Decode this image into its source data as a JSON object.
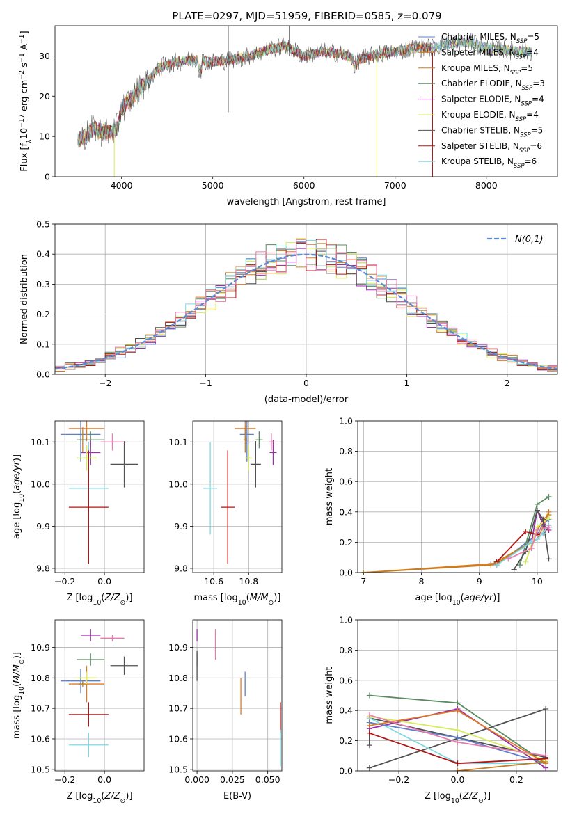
{
  "figure": {
    "title": "PLATE=0297, MJD=51959, FIBERID=0585, z=0.079"
  },
  "colors": {
    "blue": "#5f80c8",
    "orange": "#e07a22",
    "darkorange": "#c77d1e",
    "green": "#5a8a62",
    "purple": "#9a2fa8",
    "yellow": "#d6ec5a",
    "darkgray": "#505050",
    "darkred": "#b01414",
    "cyan": "#7dd8e0",
    "pink": "#e77ab0",
    "grid": "#b0b0b0"
  },
  "chart_data": [
    {
      "id": "spectrum",
      "type": "line",
      "xlabel": "wavelength [Angstrom, rest frame]",
      "ylabel": "Flux [f_λ10^-17 erg cm^-2 s^-1 A^-1]",
      "xlim": [
        3270,
        8780
      ],
      "ylim": [
        0,
        37.5
      ],
      "xticks": [
        4000,
        5000,
        6000,
        7000,
        8000
      ],
      "yticks": [
        0,
        10,
        20,
        30
      ],
      "grid": false,
      "legend_position": "lower-right",
      "continuum": {
        "x": [
          3520,
          3600,
          3700,
          3800,
          3900,
          3950,
          4000,
          4100,
          4200,
          4300,
          4400,
          4600,
          4800,
          5000,
          5200,
          5400,
          5600,
          5800,
          6000,
          6200,
          6400,
          6600,
          6800,
          7000,
          7200,
          7400,
          7600,
          7800,
          8000,
          8200,
          8500
        ],
        "y": [
          9,
          10,
          12,
          11,
          11,
          12,
          17,
          19,
          22,
          24,
          27,
          28.5,
          29,
          28.5,
          29,
          30,
          31.5,
          32.5,
          30,
          31,
          30.5,
          29,
          30.5,
          31,
          32,
          32,
          33,
          33.5,
          32,
          31.5,
          31
        ]
      },
      "series": [
        {
          "name": "Chabrier MILES, N_SSP=5",
          "color": "blue",
          "label_main": "Chabrier MILES, N",
          "label_sub": "SSP",
          "label_end": "=5"
        },
        {
          "name": "Salpeter MILES, N_SSP=4",
          "color": "orange",
          "label_main": "Salpeter MILES, N",
          "label_sub": "SSP",
          "label_end": "=4"
        },
        {
          "name": "Kroupa MILES, N_SSP=5",
          "color": "darkorange",
          "label_main": "Kroupa MILES, N",
          "label_sub": "SSP",
          "label_end": "=5"
        },
        {
          "name": "Chabrier ELODIE, N_SSP=3",
          "color": "green",
          "label_main": "Chabrier ELODIE, N",
          "label_sub": "SSP",
          "label_end": "=3"
        },
        {
          "name": "Salpeter ELODIE, N_SSP=4",
          "color": "purple",
          "label_main": "Salpeter ELODIE, N",
          "label_sub": "SSP",
          "label_end": "=4"
        },
        {
          "name": "Kroupa ELODIE, N_SSP=4",
          "color": "yellow",
          "label_main": "Kroupa ELODIE, N",
          "label_sub": "SSP",
          "label_end": "=4"
        },
        {
          "name": "Chabrier STELIB, N_SSP=5",
          "color": "darkgray",
          "label_main": "Chabrier STELIB, N",
          "label_sub": "SSP",
          "label_end": "=5"
        },
        {
          "name": "Salpeter STELIB, N_SSP=6",
          "color": "darkred",
          "label_main": "Salpeter STELIB, N",
          "label_sub": "SSP",
          "label_end": "=6"
        },
        {
          "name": "Kroupa STELIB, N_SSP=6",
          "color": "cyan",
          "label_main": "Kroupa STELIB, N",
          "label_sub": "SSP",
          "label_end": "=6"
        }
      ],
      "spikes": [
        {
          "x": 5170,
          "y0": 16,
          "y1": 37.5,
          "color": "darkgray"
        },
        {
          "x": 5840,
          "y0": 30,
          "y1": 37.5,
          "color": "darkgray"
        },
        {
          "x": 3920,
          "y0": 0,
          "y1": 12,
          "color": "yellow"
        },
        {
          "x": 6800,
          "y0": 0,
          "y1": 30,
          "color": "yellow"
        },
        {
          "x": 7410,
          "y0": 0,
          "y1": 31,
          "color": "darkred"
        }
      ]
    },
    {
      "id": "residual-histogram",
      "type": "histogram",
      "xlabel": "(data-model)/error",
      "ylabel": "Normed distribution",
      "xlim": [
        -2.5,
        2.5
      ],
      "ylim": [
        0,
        0.5
      ],
      "xticks": [
        -2,
        -1,
        0,
        1,
        2
      ],
      "yticks": [
        0.0,
        0.1,
        0.2,
        0.3,
        0.4,
        0.5
      ],
      "grid": true,
      "legend": "N(0,1)",
      "legend_position": "top-right",
      "bin_width": 0.1,
      "reference": "normal pdf mean 0 sigma 1"
    },
    {
      "id": "age-vs-Z",
      "type": "errorbar",
      "xlabel": "Z [log10(Z/Z⊙)]",
      "ylabel": "age [log10(age/yr)]",
      "xlim": [
        -0.25,
        0.2
      ],
      "ylim": [
        9.79,
        10.15
      ],
      "xticks": [
        -0.2,
        0.0
      ],
      "yticks": [
        9.8,
        9.9,
        10.0,
        10.1
      ],
      "grid": true,
      "points": [
        {
          "color": "blue",
          "x": -0.12,
          "y": 10.118,
          "xerr": 0.1,
          "yerr": 0.065
        },
        {
          "color": "orange",
          "x": -0.09,
          "y": 10.132,
          "xerr": 0.09,
          "yerr": 0.03
        },
        {
          "color": "darkorange",
          "x": -0.11,
          "y": 10.105,
          "xerr": 0.02,
          "yerr": 0.03
        },
        {
          "color": "green",
          "x": -0.07,
          "y": 10.105,
          "xerr": 0.07,
          "yerr": 0.02
        },
        {
          "color": "purple",
          "x": -0.07,
          "y": 10.075,
          "xerr": 0.05,
          "yerr": 0.03
        },
        {
          "color": "yellow",
          "x": -0.09,
          "y": 10.062,
          "xerr": 0.05,
          "yerr": 0.03
        },
        {
          "color": "darkgray",
          "x": 0.1,
          "y": 10.047,
          "xerr": 0.07,
          "yerr": 0.055
        },
        {
          "color": "pink",
          "x": 0.04,
          "y": 10.1,
          "xerr": 0.06,
          "yerr": 0.02
        },
        {
          "color": "cyan",
          "x": -0.08,
          "y": 9.99,
          "xerr": 0.1,
          "yerr": 0.11
        },
        {
          "color": "darkred",
          "x": -0.08,
          "y": 9.945,
          "xerr": 0.1,
          "yerr": 0.135
        }
      ]
    },
    {
      "id": "age-vs-mass",
      "type": "errorbar",
      "xlabel": "mass [log10(M/M⊙)]",
      "ylabel": "",
      "xlim": [
        10.48,
        10.99
      ],
      "ylim": [
        9.79,
        10.15
      ],
      "xticks": [
        10.6,
        10.8
      ],
      "yticks": [
        9.8,
        9.9,
        10.0,
        10.1
      ],
      "grid": true,
      "points": [
        {
          "color": "blue",
          "x": 10.79,
          "y": 10.118,
          "xerr": 0.04,
          "yerr": 0.065
        },
        {
          "color": "orange",
          "x": 10.78,
          "y": 10.132,
          "xerr": 0.06,
          "yerr": 0.03
        },
        {
          "color": "darkorange",
          "x": 10.78,
          "y": 10.105,
          "xerr": 0.01,
          "yerr": 0.03
        },
        {
          "color": "green",
          "x": 10.86,
          "y": 10.105,
          "xerr": 0.02,
          "yerr": 0.02
        },
        {
          "color": "purple",
          "x": 10.94,
          "y": 10.075,
          "xerr": 0.02,
          "yerr": 0.03
        },
        {
          "color": "yellow",
          "x": 10.8,
          "y": 10.062,
          "xerr": 0.02,
          "yerr": 0.03
        },
        {
          "color": "darkgray",
          "x": 10.84,
          "y": 10.047,
          "xerr": 0.03,
          "yerr": 0.055
        },
        {
          "color": "pink",
          "x": 10.93,
          "y": 10.1,
          "xerr": 0.01,
          "yerr": 0.02
        },
        {
          "color": "cyan",
          "x": 10.58,
          "y": 9.99,
          "xerr": 0.04,
          "yerr": 0.11
        },
        {
          "color": "darkred",
          "x": 10.68,
          "y": 9.945,
          "xerr": 0.04,
          "yerr": 0.135
        }
      ]
    },
    {
      "id": "massweight-vs-age",
      "type": "line",
      "xlabel": "age [log10(age/yr)]",
      "ylabel": "mass weight",
      "xlim": [
        6.9,
        10.35
      ],
      "ylim": [
        0,
        1
      ],
      "xticks": [
        7,
        8,
        9,
        10
      ],
      "yticks": [
        0.0,
        0.2,
        0.4,
        0.6,
        0.8,
        1.0
      ],
      "grid": true,
      "series": [
        {
          "color": "blue",
          "x": [
            9.2,
            9.3,
            10.0,
            10.1,
            10.2
          ],
          "y": [
            0.06,
            0.05,
            0.25,
            0.32,
            0.35
          ]
        },
        {
          "color": "orange",
          "x": [
            7.0,
            9.3,
            10.0,
            10.1,
            10.2
          ],
          "y": [
            0.0,
            0.06,
            0.22,
            0.3,
            0.4
          ]
        },
        {
          "color": "darkorange",
          "x": [
            7.0,
            9.2,
            9.9,
            10.1,
            10.2
          ],
          "y": [
            0.0,
            0.05,
            0.2,
            0.35,
            0.38
          ]
        },
        {
          "color": "green",
          "x": [
            9.7,
            10.0,
            10.2
          ],
          "y": [
            0.05,
            0.45,
            0.5
          ]
        },
        {
          "color": "purple",
          "x": [
            9.9,
            10.0,
            10.1,
            10.2
          ],
          "y": [
            0.2,
            0.41,
            0.32,
            0.28
          ]
        },
        {
          "color": "yellow",
          "x": [
            9.8,
            9.9,
            10.0,
            10.2
          ],
          "y": [
            0.07,
            0.18,
            0.3,
            0.36
          ]
        },
        {
          "color": "darkgray",
          "x": [
            9.6,
            9.8,
            10.0,
            10.1,
            10.2
          ],
          "y": [
            0.02,
            0.14,
            0.41,
            0.35,
            0.09
          ]
        },
        {
          "color": "darkred",
          "x": [
            9.3,
            9.8,
            10.0,
            10.1,
            10.2
          ],
          "y": [
            0.07,
            0.27,
            0.25,
            0.26,
            0.3
          ]
        },
        {
          "color": "cyan",
          "x": [
            9.3,
            9.9,
            10.0,
            10.1,
            10.2
          ],
          "y": [
            0.05,
            0.2,
            0.22,
            0.26,
            0.31
          ]
        },
        {
          "color": "pink",
          "x": [
            9.5,
            9.9,
            10.0,
            10.2
          ],
          "y": [
            0.09,
            0.16,
            0.28,
            0.3
          ]
        }
      ]
    },
    {
      "id": "mass-vs-Z",
      "type": "errorbar",
      "xlabel": "Z [log10(Z/Z⊙)]",
      "ylabel": "mass [log10(M/M⊙)]",
      "xlim": [
        -0.25,
        0.2
      ],
      "ylim": [
        10.495,
        10.99
      ],
      "xticks": [
        -0.2,
        0.0
      ],
      "yticks": [
        10.5,
        10.6,
        10.7,
        10.8,
        10.9
      ],
      "grid": true,
      "points": [
        {
          "color": "blue",
          "x": -0.12,
          "y": 10.79,
          "xerr": 0.1,
          "yerr": 0.04
        },
        {
          "color": "orange",
          "x": -0.09,
          "y": 10.78,
          "xerr": 0.09,
          "yerr": 0.06
        },
        {
          "color": "darkorange",
          "x": -0.11,
          "y": 10.78,
          "xerr": 0.02,
          "yerr": 0.01
        },
        {
          "color": "green",
          "x": -0.07,
          "y": 10.86,
          "xerr": 0.07,
          "yerr": 0.02
        },
        {
          "color": "purple",
          "x": -0.07,
          "y": 10.94,
          "xerr": 0.05,
          "yerr": 0.02
        },
        {
          "color": "yellow",
          "x": -0.09,
          "y": 10.8,
          "xerr": 0.05,
          "yerr": 0.02
        },
        {
          "color": "darkgray",
          "x": 0.1,
          "y": 10.84,
          "xerr": 0.07,
          "yerr": 0.03
        },
        {
          "color": "pink",
          "x": 0.04,
          "y": 10.93,
          "xerr": 0.06,
          "yerr": 0.01
        },
        {
          "color": "cyan",
          "x": -0.08,
          "y": 10.58,
          "xerr": 0.1,
          "yerr": 0.04
        },
        {
          "color": "darkred",
          "x": -0.08,
          "y": 10.68,
          "xerr": 0.1,
          "yerr": 0.04
        }
      ]
    },
    {
      "id": "mass-vs-ebv",
      "type": "errorbar",
      "xlabel": "E(B-V)",
      "ylabel": "",
      "xlim": [
        -0.003,
        0.06
      ],
      "ylim": [
        10.495,
        10.99
      ],
      "xticks": [
        0.0,
        0.025,
        0.05
      ],
      "yticks": [
        10.5,
        10.6,
        10.7,
        10.8,
        10.9
      ],
      "grid": true,
      "points": [
        {
          "color": "blue",
          "x": 0.034,
          "y": 10.78,
          "xerr": 0,
          "yerr": 0.04
        },
        {
          "color": "orange",
          "x": 0.031,
          "y": 10.74,
          "xerr": 0,
          "yerr": 0.06
        },
        {
          "color": "green",
          "x": 0.0,
          "y": 10.86,
          "xerr": 0,
          "yerr": 0.02
        },
        {
          "color": "purple",
          "x": 0.0,
          "y": 10.94,
          "xerr": 0,
          "yerr": 0.02
        },
        {
          "color": "darkgray",
          "x": 0.0,
          "y": 10.84,
          "xerr": 0,
          "yerr": 0.05
        },
        {
          "color": "pink",
          "x": 0.013,
          "y": 10.91,
          "xerr": 0,
          "yerr": 0.05
        },
        {
          "color": "darkred",
          "x": 0.059,
          "y": 10.67,
          "xerr": 0,
          "yerr": 0.05
        },
        {
          "color": "cyan",
          "x": 0.059,
          "y": 10.57,
          "xerr": 0,
          "yerr": 0.06
        }
      ]
    },
    {
      "id": "massweight-vs-Z",
      "type": "line",
      "xlabel": "Z [log10(Z/Z⊙)]",
      "ylabel": "mass weight",
      "xlim": [
        -0.34,
        0.34
      ],
      "ylim": [
        0,
        1
      ],
      "xticks": [
        -0.2,
        0.0,
        0.2
      ],
      "yticks": [
        0.0,
        0.2,
        0.4,
        0.6,
        0.8,
        1.0
      ],
      "grid": true,
      "series": [
        {
          "color": "green",
          "x": [
            -0.3,
            0.0,
            0.3
          ],
          "y": [
            0.5,
            0.45,
            0.05
          ]
        },
        {
          "color": "darkgray",
          "x": [
            -0.3,
            0.3,
            0.3,
            -0.3,
            -0.3
          ],
          "y": [
            0.02,
            0.41,
            0.09,
            0.35,
            0.17
          ]
        },
        {
          "color": "cyan",
          "x": [
            -0.3,
            0.0,
            0.3
          ],
          "y": [
            0.35,
            0.05,
            0.05
          ]
        },
        {
          "color": "purple",
          "x": [
            -0.3,
            0.0,
            0.3
          ],
          "y": [
            0.28,
            0.41,
            0.02
          ]
        },
        {
          "color": "yellow",
          "x": [
            -0.3,
            0.0,
            0.3
          ],
          "y": [
            0.36,
            0.27,
            0.07
          ]
        },
        {
          "color": "blue",
          "x": [
            -0.3,
            0.0,
            0.3
          ],
          "y": [
            0.32,
            0.22,
            0.05
          ]
        },
        {
          "color": "orange",
          "x": [
            -0.3,
            0.0,
            0.3
          ],
          "y": [
            0.3,
            0.4,
            0.05
          ]
        },
        {
          "color": "pink",
          "x": [
            -0.3,
            0.0,
            0.3
          ],
          "y": [
            0.37,
            0.19,
            0.1
          ]
        },
        {
          "color": "darkred",
          "x": [
            -0.3,
            0.0,
            0.3
          ],
          "y": [
            0.25,
            0.05,
            0.08
          ]
        },
        {
          "color": "darkorange",
          "x": [
            0.0,
            0.3
          ],
          "y": [
            0.0,
            0.06
          ]
        }
      ]
    }
  ]
}
